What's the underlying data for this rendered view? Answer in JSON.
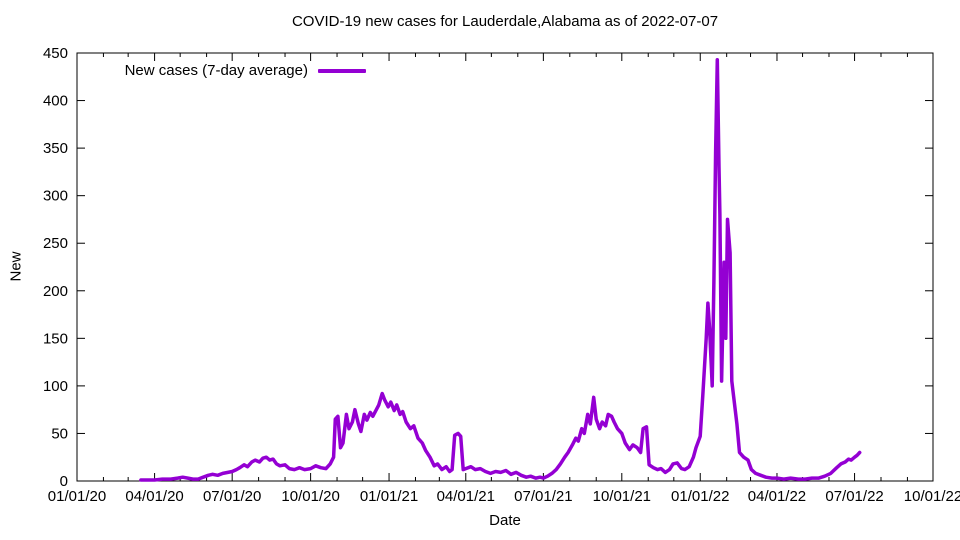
{
  "chart_data": {
    "type": "line",
    "title": "COVID-19 new cases for Lauderdale,Alabama as of 2022-07-07",
    "xlabel": "Date",
    "ylabel": "New",
    "ylim": [
      0,
      450
    ],
    "x_range": [
      "2020-01-01",
      "2022-10-01"
    ],
    "grid": false,
    "legend_position": "top-left-inside",
    "background": "#ffffff",
    "axis_color": "#000000",
    "y_ticks": [
      0,
      50,
      100,
      150,
      200,
      250,
      300,
      350,
      400,
      450
    ],
    "x_ticks": [
      {
        "date": "2020-01-01",
        "label": "01/01/20"
      },
      {
        "date": "2020-04-01",
        "label": "04/01/20"
      },
      {
        "date": "2020-07-01",
        "label": "07/01/20"
      },
      {
        "date": "2020-10-01",
        "label": "10/01/20"
      },
      {
        "date": "2021-01-01",
        "label": "01/01/21"
      },
      {
        "date": "2021-04-01",
        "label": "04/01/21"
      },
      {
        "date": "2021-07-01",
        "label": "07/01/21"
      },
      {
        "date": "2021-10-01",
        "label": "10/01/21"
      },
      {
        "date": "2022-01-01",
        "label": "01/01/22"
      },
      {
        "date": "2022-04-01",
        "label": "04/01/22"
      },
      {
        "date": "2022-07-01",
        "label": "07/01/22"
      },
      {
        "date": "2022-10-01",
        "label": "10/01/22"
      }
    ],
    "series": [
      {
        "name": "New cases (7-day average)",
        "color": "#9400d3",
        "points": [
          [
            "2020-03-16",
            1
          ],
          [
            "2020-03-23",
            1
          ],
          [
            "2020-04-01",
            1
          ],
          [
            "2020-04-10",
            2
          ],
          [
            "2020-04-20",
            2
          ],
          [
            "2020-04-28",
            3
          ],
          [
            "2020-05-04",
            4
          ],
          [
            "2020-05-10",
            3
          ],
          [
            "2020-05-16",
            2
          ],
          [
            "2020-05-22",
            2
          ],
          [
            "2020-05-28",
            4
          ],
          [
            "2020-06-03",
            6
          ],
          [
            "2020-06-08",
            7
          ],
          [
            "2020-06-14",
            6
          ],
          [
            "2020-06-20",
            8
          ],
          [
            "2020-06-26",
            9
          ],
          [
            "2020-07-01",
            10
          ],
          [
            "2020-07-06",
            12
          ],
          [
            "2020-07-10",
            14
          ],
          [
            "2020-07-15",
            17
          ],
          [
            "2020-07-19",
            15
          ],
          [
            "2020-07-24",
            20
          ],
          [
            "2020-07-28",
            22
          ],
          [
            "2020-08-02",
            20
          ],
          [
            "2020-08-06",
            24
          ],
          [
            "2020-08-10",
            25
          ],
          [
            "2020-08-14",
            22
          ],
          [
            "2020-08-18",
            23
          ],
          [
            "2020-08-22",
            18
          ],
          [
            "2020-08-26",
            16
          ],
          [
            "2020-09-01",
            17
          ],
          [
            "2020-09-06",
            13
          ],
          [
            "2020-09-12",
            12
          ],
          [
            "2020-09-18",
            14
          ],
          [
            "2020-09-24",
            12
          ],
          [
            "2020-10-01",
            13
          ],
          [
            "2020-10-07",
            16
          ],
          [
            "2020-10-13",
            14
          ],
          [
            "2020-10-19",
            13
          ],
          [
            "2020-10-24",
            18
          ],
          [
            "2020-10-28",
            25
          ],
          [
            "2020-10-30",
            65
          ],
          [
            "2020-11-02",
            68
          ],
          [
            "2020-11-05",
            35
          ],
          [
            "2020-11-08",
            40
          ],
          [
            "2020-11-12",
            70
          ],
          [
            "2020-11-15",
            55
          ],
          [
            "2020-11-19",
            62
          ],
          [
            "2020-11-22",
            75
          ],
          [
            "2020-11-26",
            60
          ],
          [
            "2020-11-29",
            52
          ],
          [
            "2020-12-03",
            70
          ],
          [
            "2020-12-06",
            64
          ],
          [
            "2020-12-10",
            72
          ],
          [
            "2020-12-13",
            68
          ],
          [
            "2020-12-17",
            75
          ],
          [
            "2020-12-20",
            80
          ],
          [
            "2020-12-24",
            92
          ],
          [
            "2020-12-27",
            85
          ],
          [
            "2020-12-31",
            78
          ],
          [
            "2021-01-03",
            83
          ],
          [
            "2021-01-07",
            74
          ],
          [
            "2021-01-10",
            80
          ],
          [
            "2021-01-14",
            70
          ],
          [
            "2021-01-17",
            73
          ],
          [
            "2021-01-21",
            62
          ],
          [
            "2021-01-26",
            55
          ],
          [
            "2021-01-30",
            58
          ],
          [
            "2021-02-04",
            45
          ],
          [
            "2021-02-09",
            40
          ],
          [
            "2021-02-13",
            32
          ],
          [
            "2021-02-18",
            25
          ],
          [
            "2021-02-23",
            16
          ],
          [
            "2021-02-27",
            18
          ],
          [
            "2021-03-04",
            12
          ],
          [
            "2021-03-09",
            15
          ],
          [
            "2021-03-13",
            10
          ],
          [
            "2021-03-16",
            12
          ],
          [
            "2021-03-19",
            48
          ],
          [
            "2021-03-23",
            50
          ],
          [
            "2021-03-26",
            47
          ],
          [
            "2021-03-29",
            12
          ],
          [
            "2021-04-01",
            13
          ],
          [
            "2021-04-07",
            15
          ],
          [
            "2021-04-12",
            12
          ],
          [
            "2021-04-18",
            13
          ],
          [
            "2021-04-24",
            10
          ],
          [
            "2021-04-30",
            8
          ],
          [
            "2021-05-06",
            10
          ],
          [
            "2021-05-12",
            9
          ],
          [
            "2021-05-18",
            11
          ],
          [
            "2021-05-24",
            7
          ],
          [
            "2021-05-30",
            9
          ],
          [
            "2021-06-05",
            6
          ],
          [
            "2021-06-11",
            4
          ],
          [
            "2021-06-16",
            5
          ],
          [
            "2021-06-22",
            3
          ],
          [
            "2021-06-27",
            4
          ],
          [
            "2021-07-01",
            3
          ],
          [
            "2021-07-06",
            5
          ],
          [
            "2021-07-11",
            8
          ],
          [
            "2021-07-16",
            12
          ],
          [
            "2021-07-21",
            18
          ],
          [
            "2021-07-26",
            25
          ],
          [
            "2021-07-30",
            30
          ],
          [
            "2021-08-04",
            38
          ],
          [
            "2021-08-08",
            45
          ],
          [
            "2021-08-11",
            42
          ],
          [
            "2021-08-15",
            55
          ],
          [
            "2021-08-18",
            50
          ],
          [
            "2021-08-22",
            70
          ],
          [
            "2021-08-25",
            60
          ],
          [
            "2021-08-29",
            88
          ],
          [
            "2021-09-01",
            65
          ],
          [
            "2021-09-05",
            55
          ],
          [
            "2021-09-08",
            62
          ],
          [
            "2021-09-12",
            58
          ],
          [
            "2021-09-15",
            70
          ],
          [
            "2021-09-19",
            68
          ],
          [
            "2021-09-22",
            62
          ],
          [
            "2021-09-26",
            55
          ],
          [
            "2021-10-01",
            50
          ],
          [
            "2021-10-05",
            40
          ],
          [
            "2021-10-10",
            33
          ],
          [
            "2021-10-14",
            38
          ],
          [
            "2021-10-19",
            35
          ],
          [
            "2021-10-23",
            30
          ],
          [
            "2021-10-26",
            55
          ],
          [
            "2021-10-30",
            57
          ],
          [
            "2021-11-02",
            17
          ],
          [
            "2021-11-07",
            14
          ],
          [
            "2021-11-12",
            12
          ],
          [
            "2021-11-16",
            13
          ],
          [
            "2021-11-21",
            9
          ],
          [
            "2021-11-26",
            12
          ],
          [
            "2021-11-30",
            18
          ],
          [
            "2021-12-05",
            19
          ],
          [
            "2021-12-10",
            13
          ],
          [
            "2021-12-14",
            12
          ],
          [
            "2021-12-19",
            15
          ],
          [
            "2021-12-24",
            25
          ],
          [
            "2021-12-27",
            35
          ],
          [
            "2022-01-01",
            47
          ],
          [
            "2022-01-04",
            90
          ],
          [
            "2022-01-08",
            150
          ],
          [
            "2022-01-10",
            187
          ],
          [
            "2022-01-12",
            160
          ],
          [
            "2022-01-15",
            100
          ],
          [
            "2022-01-17",
            210
          ],
          [
            "2022-01-19",
            345
          ],
          [
            "2022-01-21",
            443
          ],
          [
            "2022-01-23",
            330
          ],
          [
            "2022-01-24",
            280
          ],
          [
            "2022-01-26",
            105
          ],
          [
            "2022-01-29",
            230
          ],
          [
            "2022-01-31",
            150
          ],
          [
            "2022-02-02",
            275
          ],
          [
            "2022-02-05",
            240
          ],
          [
            "2022-02-07",
            105
          ],
          [
            "2022-02-09",
            90
          ],
          [
            "2022-02-13",
            60
          ],
          [
            "2022-02-16",
            30
          ],
          [
            "2022-02-21",
            25
          ],
          [
            "2022-02-26",
            22
          ],
          [
            "2022-03-02",
            12
          ],
          [
            "2022-03-07",
            8
          ],
          [
            "2022-03-13",
            6
          ],
          [
            "2022-03-19",
            4
          ],
          [
            "2022-03-26",
            3
          ],
          [
            "2022-04-01",
            3
          ],
          [
            "2022-04-09",
            2
          ],
          [
            "2022-04-17",
            3
          ],
          [
            "2022-04-26",
            2
          ],
          [
            "2022-05-04",
            2
          ],
          [
            "2022-05-12",
            3
          ],
          [
            "2022-05-20",
            3
          ],
          [
            "2022-05-27",
            5
          ],
          [
            "2022-06-03",
            8
          ],
          [
            "2022-06-10",
            14
          ],
          [
            "2022-06-15",
            18
          ],
          [
            "2022-06-20",
            20
          ],
          [
            "2022-06-24",
            23
          ],
          [
            "2022-06-27",
            22
          ],
          [
            "2022-07-01",
            25
          ],
          [
            "2022-07-04",
            27
          ],
          [
            "2022-07-07",
            30
          ]
        ]
      }
    ]
  }
}
